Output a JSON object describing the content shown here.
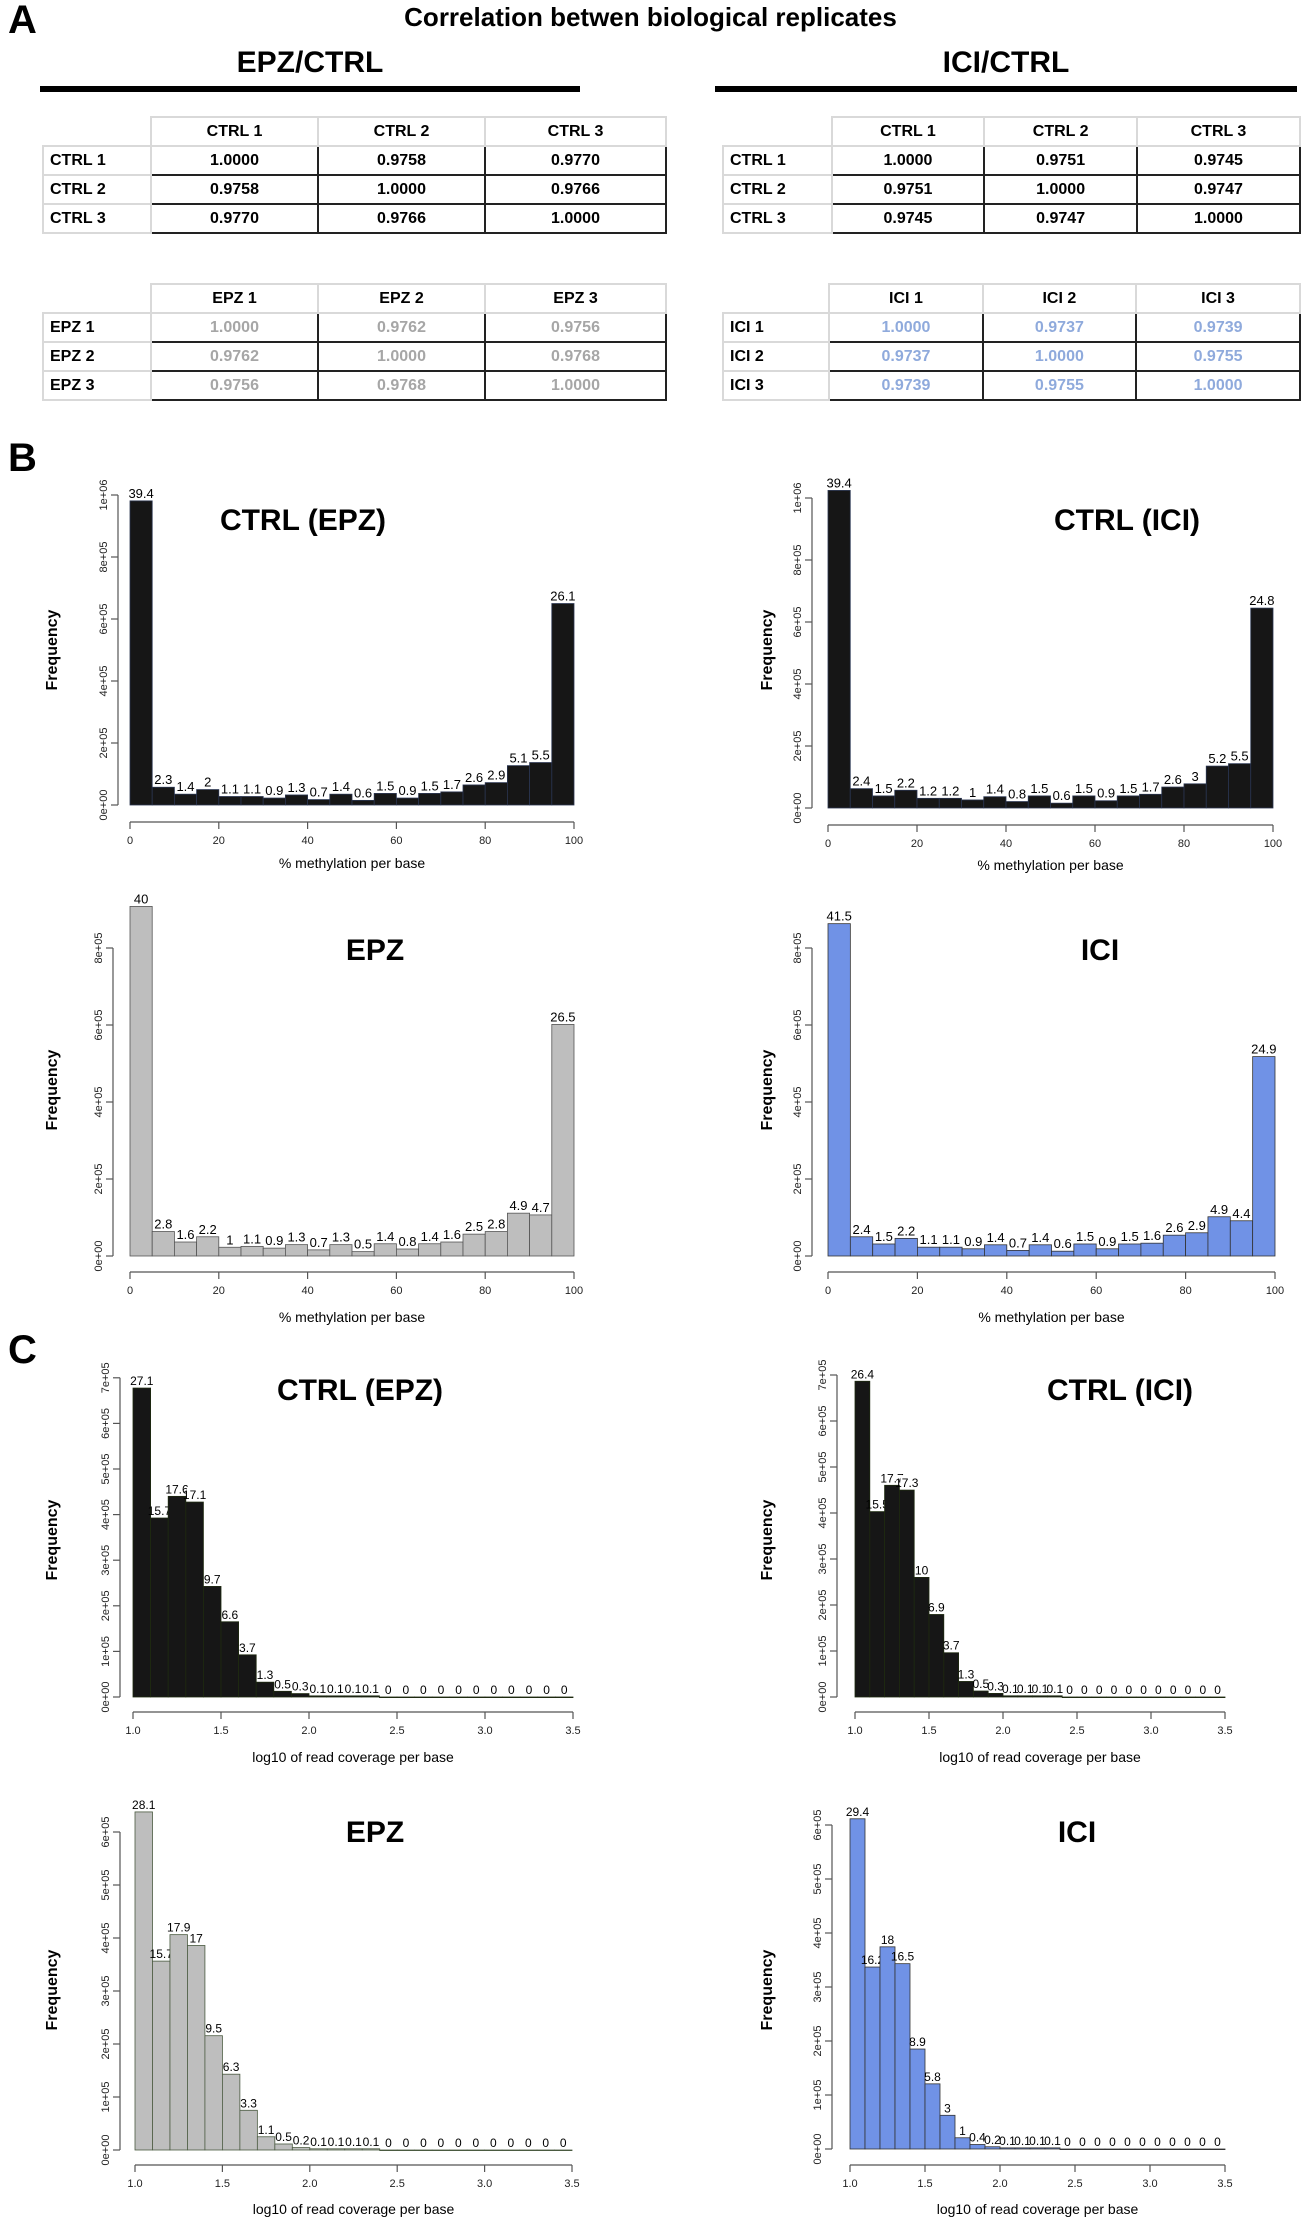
{
  "panel_labels": {
    "a": "A",
    "b": "B",
    "c": "C"
  },
  "title": "Correlation betwen biological replicates",
  "groups": [
    {
      "heading": "EPZ/CTRL",
      "tables": [
        {
          "value_color": "#000000",
          "cols": [
            "CTRL 1",
            "CTRL 2",
            "CTRL 3"
          ],
          "rows": [
            {
              "label": "CTRL 1",
              "values": [
                "1.0000",
                "0.9758",
                "0.9770"
              ]
            },
            {
              "label": "CTRL 2",
              "values": [
                "0.9758",
                "1.0000",
                "0.9766"
              ]
            },
            {
              "label": "CTRL 3",
              "values": [
                "0.9770",
                "0.9766",
                "1.0000"
              ]
            }
          ]
        },
        {
          "value_color": "#a6a6a6",
          "cols": [
            "EPZ 1",
            "EPZ 2",
            "EPZ 3"
          ],
          "rows": [
            {
              "label": "EPZ 1",
              "values": [
                "1.0000",
                "0.9762",
                "0.9756"
              ]
            },
            {
              "label": "EPZ 2",
              "values": [
                "0.9762",
                "1.0000",
                "0.9768"
              ]
            },
            {
              "label": "EPZ 3",
              "values": [
                "0.9756",
                "0.9768",
                "1.0000"
              ]
            }
          ]
        }
      ]
    },
    {
      "heading": "ICI/CTRL",
      "tables": [
        {
          "value_color": "#000000",
          "cols": [
            "CTRL 1",
            "CTRL 2",
            "CTRL 3"
          ],
          "rows": [
            {
              "label": "CTRL 1",
              "values": [
                "1.0000",
                "0.9751",
                "0.9745"
              ]
            },
            {
              "label": "CTRL 2",
              "values": [
                "0.9751",
                "1.0000",
                "0.9747"
              ]
            },
            {
              "label": "CTRL 3",
              "values": [
                "0.9745",
                "0.9747",
                "1.0000"
              ]
            }
          ]
        },
        {
          "value_color": "#8faadc",
          "cols": [
            "ICI 1",
            "ICI 2",
            "ICI 3"
          ],
          "rows": [
            {
              "label": "ICI 1",
              "values": [
                "1.0000",
                "0.9737",
                "0.9739"
              ]
            },
            {
              "label": "ICI 2",
              "values": [
                "0.9737",
                "1.0000",
                "0.9755"
              ]
            },
            {
              "label": "ICI 3",
              "values": [
                "0.9739",
                "0.9755",
                "1.0000"
              ]
            }
          ]
        }
      ]
    }
  ],
  "chart_data": [
    {
      "type": "bar",
      "title": "CTRL (EPZ)",
      "xlabel": "% methylation per base",
      "ylabel": "Frequency",
      "xlim": [
        0,
        100
      ],
      "bin_width": 5,
      "color": "#161616",
      "stroke": "#2a3550",
      "total_count": 2490000,
      "values": [
        39.4,
        2.3,
        1.4,
        2,
        1.1,
        1.1,
        0.9,
        1.3,
        0.7,
        1.4,
        0.6,
        1.5,
        0.9,
        1.5,
        1.7,
        2.6,
        2.9,
        5.1,
        5.5,
        26.1
      ],
      "xticks": [
        "0",
        "20",
        "40",
        "60",
        "80",
        "100"
      ],
      "ytick_step": 200000,
      "yticks": [
        "0e+00",
        "2e+05",
        "4e+05",
        "6e+05",
        "8e+05",
        "1e+06"
      ]
    },
    {
      "type": "bar",
      "title": "CTRL (ICI)",
      "xlabel": "% methylation per base",
      "ylabel": "Frequency",
      "xlim": [
        0,
        100
      ],
      "bin_width": 5,
      "color": "#161616",
      "stroke": "#2a3550",
      "total_count": 2600000,
      "values": [
        39.4,
        2.4,
        1.5,
        2.2,
        1.2,
        1.2,
        1,
        1.4,
        0.8,
        1.5,
        0.6,
        1.5,
        0.9,
        1.5,
        1.7,
        2.6,
        3,
        5.2,
        5.5,
        24.8
      ],
      "xticks": [
        "0",
        "20",
        "40",
        "60",
        "80",
        "100"
      ],
      "ytick_step": 200000,
      "yticks": [
        "0e+00",
        "2e+05",
        "4e+05",
        "6e+05",
        "8e+05",
        "1e+06"
      ]
    },
    {
      "type": "bar",
      "title": "EPZ",
      "xlabel": "% methylation per base",
      "ylabel": "Frequency",
      "xlim": [
        0,
        100
      ],
      "bin_width": 5,
      "color": "#bebebe",
      "stroke": "#555555",
      "total_count": 2270000,
      "values": [
        40,
        2.8,
        1.6,
        2.2,
        1,
        1.1,
        0.9,
        1.3,
        0.7,
        1.3,
        0.5,
        1.4,
        0.8,
        1.4,
        1.6,
        2.5,
        2.8,
        4.9,
        4.7,
        26.5
      ],
      "xticks": [
        "0",
        "20",
        "40",
        "60",
        "80",
        "100"
      ],
      "ytick_step": 200000,
      "yticks": [
        "0e+00",
        "2e+05",
        "4e+05",
        "6e+05",
        "8e+05"
      ]
    },
    {
      "type": "bar",
      "title": "ICI",
      "xlabel": "% methylation per base",
      "ylabel": "Frequency",
      "xlim": [
        0,
        100
      ],
      "bin_width": 5,
      "color": "#7092e6",
      "stroke": "#333333",
      "total_count": 2080000,
      "values": [
        41.5,
        2.4,
        1.5,
        2.2,
        1.1,
        1.1,
        0.9,
        1.4,
        0.7,
        1.4,
        0.6,
        1.5,
        0.9,
        1.5,
        1.6,
        2.6,
        2.9,
        4.9,
        4.4,
        24.9
      ],
      "xticks": [
        "0",
        "20",
        "40",
        "60",
        "80",
        "100"
      ],
      "ytick_step": 200000,
      "yticks": [
        "0e+00",
        "2e+05",
        "4e+05",
        "6e+05",
        "8e+05"
      ]
    },
    {
      "type": "bar",
      "title": "CTRL (EPZ)",
      "xlabel": "log10 of read coverage per base",
      "ylabel": "Frequency",
      "xlim": [
        1.0,
        3.5
      ],
      "bin_width": 0.1,
      "color": "#161616",
      "stroke": "#1e2a10",
      "total_count": 2500000,
      "values": [
        27.1,
        15.7,
        17.6,
        17.1,
        9.7,
        6.6,
        3.7,
        1.3,
        0.5,
        0.3,
        0.1,
        0.1,
        0.1,
        0.1,
        0,
        0,
        0,
        0,
        0,
        0,
        0,
        0,
        0,
        0,
        0
      ],
      "xticks": [
        "1.0",
        "1.5",
        "2.0",
        "2.5",
        "3.0",
        "3.5"
      ],
      "ytick_step": 100000,
      "yticks": [
        "0e+00",
        "1e+05",
        "2e+05",
        "3e+05",
        "4e+05",
        "5e+05",
        "6e+05",
        "7e+05"
      ]
    },
    {
      "type": "bar",
      "title": "CTRL (ICI)",
      "xlabel": "log10 of read coverage per base",
      "ylabel": "Frequency",
      "xlim": [
        1.0,
        3.5
      ],
      "bin_width": 0.1,
      "color": "#161616",
      "stroke": "#1e2a10",
      "total_count": 2600000,
      "values": [
        26.4,
        15.5,
        17.7,
        17.3,
        10,
        6.9,
        3.7,
        1.3,
        0.5,
        0.3,
        0.1,
        0.1,
        0.1,
        0.1,
        0,
        0,
        0,
        0,
        0,
        0,
        0,
        0,
        0,
        0,
        0
      ],
      "xticks": [
        "1.0",
        "1.5",
        "2.0",
        "2.5",
        "3.0",
        "3.5"
      ],
      "ytick_step": 100000,
      "yticks": [
        "0e+00",
        "1e+05",
        "2e+05",
        "3e+05",
        "4e+05",
        "5e+05",
        "6e+05",
        "7e+05"
      ]
    },
    {
      "type": "bar",
      "title": "EPZ",
      "xlabel": "log10 of read coverage per base",
      "ylabel": "Frequency",
      "xlim": [
        1.0,
        3.5
      ],
      "bin_width": 0.1,
      "color": "#bebebe",
      "stroke": "#4a5a40",
      "total_count": 2270000,
      "values": [
        28.1,
        15.7,
        17.9,
        17,
        9.5,
        6.3,
        3.3,
        1.1,
        0.5,
        0.2,
        0.1,
        0.1,
        0.1,
        0.1,
        0,
        0,
        0,
        0,
        0,
        0,
        0,
        0,
        0,
        0,
        0
      ],
      "xticks": [
        "1.0",
        "1.5",
        "2.0",
        "2.5",
        "3.0",
        "3.5"
      ],
      "ytick_step": 100000,
      "yticks": [
        "0e+00",
        "1e+05",
        "2e+05",
        "3e+05",
        "4e+05",
        "5e+05",
        "6e+05"
      ]
    },
    {
      "type": "bar",
      "title": "ICI",
      "xlabel": "log10 of read coverage per base",
      "ylabel": "Frequency",
      "xlim": [
        1.0,
        3.5
      ],
      "bin_width": 0.1,
      "color": "#7092e6",
      "stroke": "#333333",
      "total_count": 2080000,
      "values": [
        29.4,
        16.2,
        18,
        16.5,
        8.9,
        5.8,
        3,
        1,
        0.4,
        0.2,
        0.1,
        0.1,
        0.1,
        0.1,
        0,
        0,
        0,
        0,
        0,
        0,
        0,
        0,
        0,
        0,
        0
      ],
      "xticks": [
        "1.0",
        "1.5",
        "2.0",
        "2.5",
        "3.0",
        "3.5"
      ],
      "ytick_step": 100000,
      "yticks": [
        "0e+00",
        "1e+05",
        "2e+05",
        "3e+05",
        "4e+05",
        "5e+05",
        "6e+05"
      ]
    }
  ]
}
